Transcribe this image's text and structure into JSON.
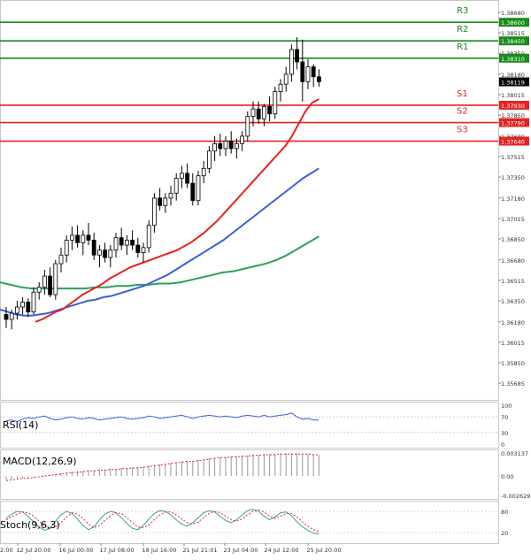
{
  "chart_data": {
    "type": "candlestick",
    "instrument_note": "",
    "price_axis": {
      "range": [
        1.3555,
        1.3878
      ],
      "ticks": [
        "1.38680",
        "1.38515",
        "1.38350",
        "1.38180",
        "1.38015",
        "1.37850",
        "1.37680",
        "1.37515",
        "1.37350",
        "1.37180",
        "1.37015",
        "1.36850",
        "1.36680",
        "1.36515",
        "1.36350",
        "1.36180",
        "1.36015",
        "1.35850",
        "1.35685"
      ]
    },
    "current_price": "1.38119",
    "levels": [
      {
        "name": "R3",
        "value": 1.386,
        "label": "1.38600",
        "color": "#1a8a1a"
      },
      {
        "name": "R2",
        "value": 1.3845,
        "label": "1.38450",
        "color": "#1a8a1a"
      },
      {
        "name": "R1",
        "value": 1.3831,
        "label": "1.38310",
        "color": "#1a8a1a"
      },
      {
        "name": "S1",
        "value": 1.3793,
        "label": "1.37930",
        "color": "#e52222"
      },
      {
        "name": "S2",
        "value": 1.3779,
        "label": "1.37790",
        "color": "#e52222"
      },
      {
        "name": "S3",
        "value": 1.3764,
        "label": "1.37640",
        "color": "#e52222"
      }
    ],
    "x_labels": [
      "12 Jul 20:00",
      "16 Jul 00:00",
      "17 Jul 08:00",
      "18 Jul 16:00",
      "21 Jul 21:01",
      "23 Jul 04:00",
      "24 Jul 12:00",
      "25 Jul 20:00"
    ],
    "x_label_left": "2:00",
    "candles": [
      [
        1.3624,
        1.363,
        1.3613,
        1.362
      ],
      [
        1.362,
        1.3628,
        1.3612,
        1.3625
      ],
      [
        1.3625,
        1.3635,
        1.362,
        1.363
      ],
      [
        1.363,
        1.3638,
        1.3624,
        1.3634
      ],
      [
        1.3634,
        1.3637,
        1.3622,
        1.3626
      ],
      [
        1.3626,
        1.3646,
        1.3624,
        1.3642
      ],
      [
        1.3642,
        1.365,
        1.3636,
        1.3646
      ],
      [
        1.3646,
        1.366,
        1.364,
        1.3655
      ],
      [
        1.3655,
        1.3662,
        1.3638,
        1.364
      ],
      [
        1.364,
        1.3668,
        1.3636,
        1.3665
      ],
      [
        1.3665,
        1.3678,
        1.3658,
        1.3672
      ],
      [
        1.3672,
        1.3688,
        1.3666,
        1.3684
      ],
      [
        1.3684,
        1.3695,
        1.3676,
        1.3688
      ],
      [
        1.3688,
        1.3696,
        1.3678,
        1.3682
      ],
      [
        1.3682,
        1.3692,
        1.3672,
        1.3688
      ],
      [
        1.3688,
        1.3698,
        1.368,
        1.3684
      ],
      [
        1.3684,
        1.369,
        1.3668,
        1.3672
      ],
      [
        1.3672,
        1.368,
        1.3662,
        1.3676
      ],
      [
        1.3676,
        1.3682,
        1.3666,
        1.367
      ],
      [
        1.367,
        1.368,
        1.3662,
        1.3676
      ],
      [
        1.3676,
        1.369,
        1.367,
        1.3686
      ],
      [
        1.3686,
        1.3694,
        1.3676,
        1.368
      ],
      [
        1.368,
        1.3688,
        1.3672,
        1.3684
      ],
      [
        1.3684,
        1.3692,
        1.3676,
        1.368
      ],
      [
        1.368,
        1.3686,
        1.367,
        1.3674
      ],
      [
        1.3674,
        1.3682,
        1.3666,
        1.3678
      ],
      [
        1.3678,
        1.37,
        1.3674,
        1.3696
      ],
      [
        1.3696,
        1.3722,
        1.369,
        1.3718
      ],
      [
        1.3718,
        1.3726,
        1.3708,
        1.3712
      ],
      [
        1.3712,
        1.3722,
        1.3706,
        1.3718
      ],
      [
        1.3718,
        1.3728,
        1.3712,
        1.3722
      ],
      [
        1.3722,
        1.3738,
        1.3716,
        1.3734
      ],
      [
        1.3734,
        1.3744,
        1.3726,
        1.3738
      ],
      [
        1.3738,
        1.3746,
        1.3726,
        1.373
      ],
      [
        1.373,
        1.3738,
        1.3712,
        1.3716
      ],
      [
        1.3716,
        1.374,
        1.3712,
        1.3736
      ],
      [
        1.3736,
        1.3748,
        1.373,
        1.3742
      ],
      [
        1.3742,
        1.376,
        1.3738,
        1.3756
      ],
      [
        1.3756,
        1.3768,
        1.3748,
        1.3762
      ],
      [
        1.3762,
        1.377,
        1.3752,
        1.3758
      ],
      [
        1.3758,
        1.3768,
        1.3752,
        1.3764
      ],
      [
        1.3764,
        1.3772,
        1.3754,
        1.3758
      ],
      [
        1.3758,
        1.3766,
        1.375,
        1.3762
      ],
      [
        1.3762,
        1.3772,
        1.3756,
        1.3768
      ],
      [
        1.3768,
        1.3788,
        1.3764,
        1.3784
      ],
      [
        1.3784,
        1.3796,
        1.3776,
        1.379
      ],
      [
        1.379,
        1.3796,
        1.3778,
        1.3782
      ],
      [
        1.3782,
        1.3794,
        1.3776,
        1.3792
      ],
      [
        1.3792,
        1.38,
        1.378,
        1.3786
      ],
      [
        1.3786,
        1.3808,
        1.3782,
        1.3804
      ],
      [
        1.3804,
        1.3814,
        1.3796,
        1.381
      ],
      [
        1.381,
        1.3824,
        1.3804,
        1.3818
      ],
      [
        1.3818,
        1.3842,
        1.3812,
        1.3838
      ],
      [
        1.3838,
        1.3848,
        1.3822,
        1.3828
      ],
      [
        1.3828,
        1.3846,
        1.3796,
        1.3812
      ],
      [
        1.3812,
        1.383,
        1.3806,
        1.3824
      ],
      [
        1.3824,
        1.3826,
        1.3808,
        1.3816
      ],
      [
        1.3816,
        1.3822,
        1.3808,
        1.3812
      ]
    ],
    "ma_fast_red": [
      1.3618,
      1.362,
      1.3623,
      1.3626,
      1.3628,
      1.3632,
      1.3636,
      1.364,
      1.3643,
      1.3646,
      1.3649,
      1.3653,
      1.3656,
      1.3659,
      1.3662,
      1.3664,
      1.3666,
      1.3668,
      1.367,
      1.3672,
      1.3674,
      1.3676,
      1.3679,
      1.3682,
      1.3686,
      1.369,
      1.3695,
      1.37,
      1.3706,
      1.3712,
      1.3718,
      1.3724,
      1.373,
      1.3736,
      1.3742,
      1.3748,
      1.3754,
      1.376,
      1.3768,
      1.3778,
      1.3788,
      1.3795,
      1.3798
    ],
    "ma_mid_blue": [
      1.3628,
      1.3626,
      1.3624,
      1.3623,
      1.3623,
      1.3624,
      1.3625,
      1.3627,
      1.3629,
      1.3631,
      1.3633,
      1.3635,
      1.3636,
      1.3638,
      1.3639,
      1.3641,
      1.3643,
      1.3645,
      1.3647,
      1.365,
      1.3653,
      1.3656,
      1.366,
      1.3664,
      1.3668,
      1.3672,
      1.3676,
      1.368,
      1.3684,
      1.3689,
      1.3694,
      1.3699,
      1.3704,
      1.3709,
      1.3714,
      1.3719,
      1.3724,
      1.3729,
      1.3734,
      1.3738,
      1.3742
    ],
    "ma_slow_green": [
      1.365,
      1.3648,
      1.3646,
      1.3645,
      1.3645,
      1.3645,
      1.3645,
      1.3645,
      1.3645,
      1.3646,
      1.3646,
      1.3647,
      1.3647,
      1.3648,
      1.3648,
      1.3649,
      1.3649,
      1.365,
      1.3652,
      1.3654,
      1.3656,
      1.3658,
      1.3659,
      1.3661,
      1.3663,
      1.3665,
      1.3668,
      1.3672,
      1.3677,
      1.3682,
      1.3687
    ],
    "rsi": {
      "label": "RSI(14)",
      "range": [
        0,
        100
      ],
      "ticks": [
        "100",
        "70",
        "30",
        "0"
      ],
      "values": [
        60,
        62,
        58,
        64,
        68,
        66,
        70,
        72,
        66,
        62,
        64,
        68,
        70,
        66,
        64,
        68,
        66,
        62,
        64,
        66,
        68,
        70,
        66,
        64,
        66,
        68,
        72,
        70,
        66,
        68,
        70,
        72,
        74,
        70,
        66,
        70,
        72,
        74,
        72,
        70,
        72,
        70,
        68,
        72,
        74,
        72,
        70,
        74,
        70,
        72,
        74,
        76,
        80,
        70,
        64,
        66,
        62,
        62
      ]
    },
    "macd": {
      "label": "MACD(12,26,9)",
      "range": [
        -0.00262,
        0.00314
      ],
      "ticks": [
        "0.003137",
        "0.00",
        "-0.002629"
      ],
      "values": [
        -0.0005,
        -0.0004,
        -0.0003,
        -0.0003,
        -0.0002,
        -0.0001,
        0.0,
        0.0001,
        0.0002,
        0.0003,
        0.0004,
        0.0005,
        0.0006,
        0.0007,
        0.0007,
        0.0008,
        0.0008,
        0.0009,
        0.0009,
        0.001,
        0.001,
        0.0011,
        0.0011,
        0.0012,
        0.0012,
        0.0013,
        0.0014,
        0.0015,
        0.0016,
        0.0017,
        0.0018,
        0.0019,
        0.002,
        0.0021,
        0.0021,
        0.0022,
        0.0023,
        0.0024,
        0.0025,
        0.0026,
        0.0026,
        0.0027,
        0.0027,
        0.0028,
        0.0028,
        0.0029,
        0.0029,
        0.003,
        0.003,
        0.003,
        0.0031,
        0.0031,
        0.0031,
        0.0031,
        0.003,
        0.003,
        0.003,
        0.0029
      ],
      "signal": [
        -0.0006,
        -0.0005,
        -0.0004,
        -0.0003,
        -0.0003,
        -0.0002,
        -0.0001,
        0.0,
        0.0001,
        0.0002,
        0.0003,
        0.0004,
        0.0005,
        0.0005,
        0.0006,
        0.0007,
        0.0007,
        0.0008,
        0.0008,
        0.0009,
        0.0009,
        0.001,
        0.001,
        0.0011,
        0.0011,
        0.0012,
        0.0013,
        0.0014,
        0.0015,
        0.0016,
        0.0017,
        0.0018,
        0.0019,
        0.002,
        0.002,
        0.0021,
        0.0022,
        0.0023,
        0.0024,
        0.0025,
        0.0025,
        0.0026,
        0.0026,
        0.0027,
        0.0027,
        0.0028,
        0.0028,
        0.0029,
        0.0029,
        0.0029,
        0.003,
        0.003,
        0.003,
        0.003,
        0.003,
        0.003,
        0.0029,
        0.0029
      ]
    },
    "stoch": {
      "label": "Stoch(9,6,3)",
      "range": [
        0,
        100
      ],
      "ticks": [
        "80",
        "20"
      ],
      "k": [
        60,
        72,
        80,
        78,
        66,
        50,
        36,
        26,
        32,
        52,
        70,
        80,
        74,
        58,
        40,
        28,
        36,
        56,
        72,
        80,
        76,
        62,
        46,
        32,
        28,
        40,
        58,
        74,
        82,
        80,
        70,
        56,
        44,
        38,
        48,
        62,
        76,
        82,
        78,
        66,
        54,
        48,
        56,
        70,
        82,
        86,
        80,
        66,
        56,
        64,
        76,
        78,
        68,
        50,
        36,
        26,
        18,
        16
      ],
      "d": [
        56,
        64,
        72,
        78,
        76,
        66,
        52,
        40,
        32,
        36,
        48,
        64,
        76,
        72,
        60,
        44,
        34,
        40,
        54,
        68,
        76,
        74,
        62,
        48,
        36,
        34,
        42,
        56,
        70,
        78,
        78,
        70,
        58,
        48,
        44,
        50,
        62,
        74,
        80,
        76,
        66,
        56,
        52,
        58,
        70,
        80,
        84,
        78,
        66,
        60,
        66,
        74,
        74,
        64,
        50,
        38,
        28,
        22
      ]
    }
  }
}
